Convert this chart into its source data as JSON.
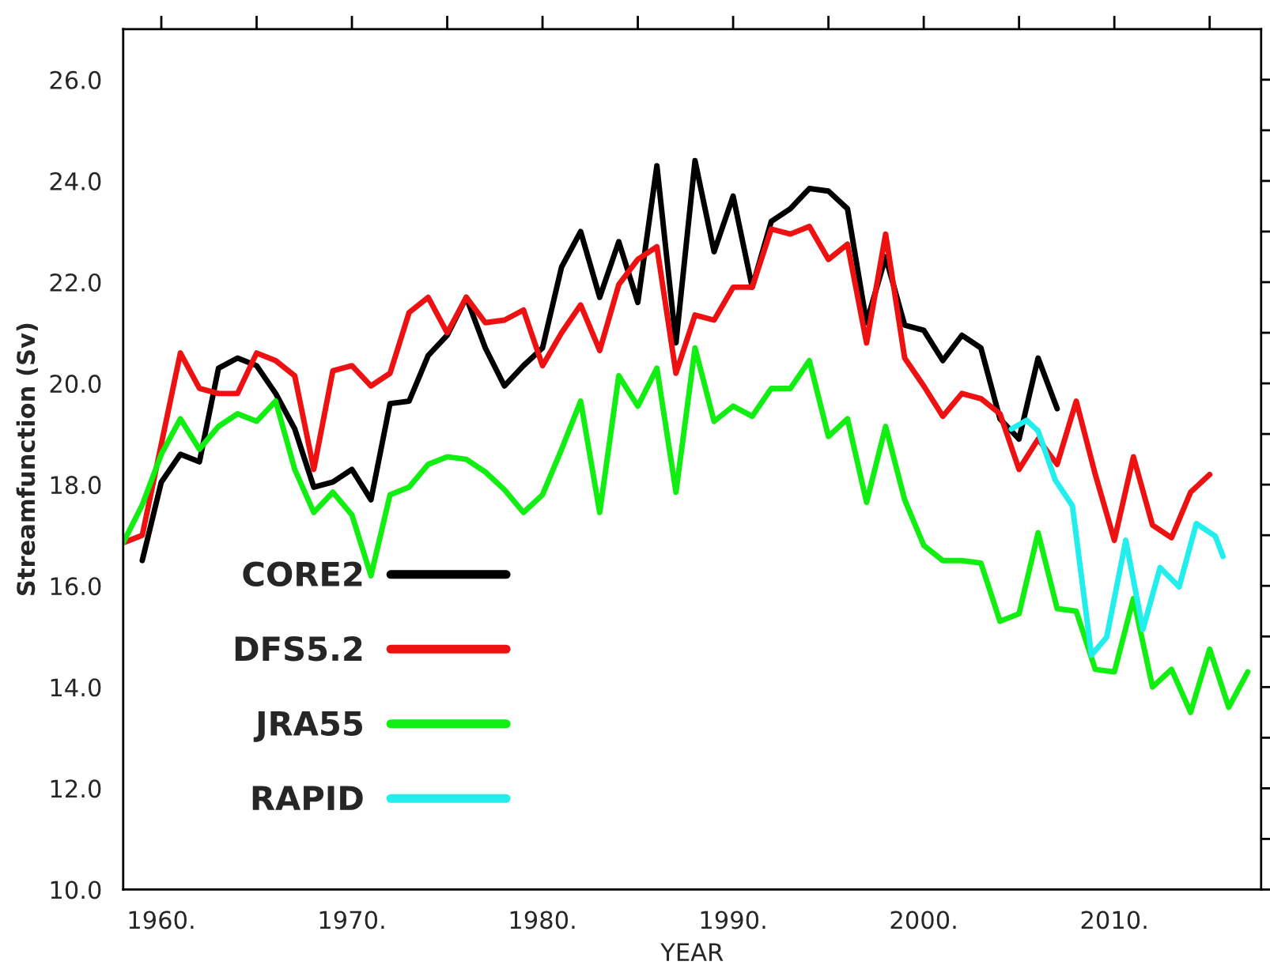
{
  "chart_data": {
    "type": "line",
    "xlabel": "YEAR",
    "ylabel": "Streamfunction (Sv)",
    "xlim": [
      1958,
      2017.7
    ],
    "ylim": [
      10,
      27
    ],
    "xticks": [
      {
        "value": 1960,
        "label": "1960."
      },
      {
        "value": 1965,
        "label": null
      },
      {
        "value": 1970,
        "label": "1970."
      },
      {
        "value": 1975,
        "label": null
      },
      {
        "value": 1980,
        "label": "1980."
      },
      {
        "value": 1985,
        "label": null
      },
      {
        "value": 1990,
        "label": "1990."
      },
      {
        "value": 1995,
        "label": null
      },
      {
        "value": 2000,
        "label": "2000."
      },
      {
        "value": 2005,
        "label": null
      },
      {
        "value": 2010,
        "label": "2010."
      },
      {
        "value": 2015,
        "label": null
      }
    ],
    "yticks": [
      {
        "value": 10,
        "label": "10.0"
      },
      {
        "value": 11,
        "label": null
      },
      {
        "value": 12,
        "label": "12.0"
      },
      {
        "value": 13,
        "label": null
      },
      {
        "value": 14,
        "label": "14.0"
      },
      {
        "value": 15,
        "label": null
      },
      {
        "value": 16,
        "label": "16.0"
      },
      {
        "value": 17,
        "label": null
      },
      {
        "value": 18,
        "label": "18.0"
      },
      {
        "value": 19,
        "label": null
      },
      {
        "value": 20,
        "label": "20.0"
      },
      {
        "value": 21,
        "label": null
      },
      {
        "value": 22,
        "label": "22.0"
      },
      {
        "value": 23,
        "label": null
      },
      {
        "value": 24,
        "label": "24.0"
      },
      {
        "value": 25,
        "label": null
      },
      {
        "value": 26,
        "label": "26.0"
      }
    ],
    "grid": false,
    "legend": "bottom left",
    "marker": "none",
    "line_style": "solid",
    "series": [
      {
        "name": "CORE2",
        "color": "#000000",
        "x": [
          1959,
          1960,
          1961,
          1962,
          1963,
          1964,
          1965,
          1966,
          1967,
          1968,
          1969,
          1970,
          1971,
          1972,
          1973,
          1974,
          1975,
          1976,
          1977,
          1978,
          1979,
          1980,
          1981,
          1982,
          1983,
          1984,
          1985,
          1986,
          1987,
          1988,
          1989,
          1990,
          1991,
          1992,
          1993,
          1994,
          1995,
          1996,
          1997,
          1998,
          1999,
          2000,
          2001,
          2002,
          2003,
          2004,
          2005,
          2006,
          2007
        ],
        "values": [
          16.5,
          18.05,
          18.6,
          18.45,
          20.3,
          20.5,
          20.35,
          19.8,
          19.1,
          17.95,
          18.05,
          18.3,
          17.7,
          19.6,
          19.65,
          20.55,
          20.95,
          21.7,
          20.7,
          19.95,
          20.35,
          20.7,
          22.3,
          23.0,
          21.7,
          22.8,
          21.6,
          24.3,
          20.8,
          24.4,
          22.6,
          23.7,
          21.9,
          23.2,
          23.45,
          23.85,
          23.8,
          23.45,
          21.2,
          22.5,
          21.15,
          21.05,
          20.45,
          20.95,
          20.7,
          19.3,
          18.9,
          20.5,
          19.5
        ]
      },
      {
        "name": "DFS5.2",
        "color": "#ee1111",
        "x": [
          1958,
          1959,
          1960,
          1961,
          1962,
          1963,
          1964,
          1965,
          1966,
          1967,
          1968,
          1969,
          1970,
          1971,
          1972,
          1973,
          1974,
          1975,
          1976,
          1977,
          1978,
          1979,
          1980,
          1981,
          1982,
          1983,
          1984,
          1985,
          1986,
          1987,
          1988,
          1989,
          1990,
          1991,
          1992,
          1993,
          1994,
          1995,
          1996,
          1997,
          1998,
          1999,
          2000,
          2001,
          2002,
          2003,
          2004,
          2005,
          2006,
          2007,
          2008,
          2009,
          2010,
          2011,
          2012,
          2013,
          2014,
          2015
        ],
        "values": [
          16.85,
          17.0,
          18.8,
          20.6,
          19.9,
          19.8,
          19.8,
          20.6,
          20.45,
          20.15,
          18.3,
          20.25,
          20.35,
          19.95,
          20.2,
          21.4,
          21.7,
          21.0,
          21.7,
          21.2,
          21.25,
          21.45,
          20.35,
          21.0,
          21.55,
          20.65,
          21.95,
          22.45,
          22.7,
          20.2,
          21.35,
          21.25,
          21.9,
          21.9,
          23.05,
          22.95,
          23.1,
          22.45,
          22.75,
          20.8,
          22.95,
          20.5,
          19.95,
          19.35,
          19.8,
          19.7,
          19.4,
          18.3,
          18.9,
          18.4,
          19.65,
          18.2,
          16.9,
          18.55,
          17.2,
          16.95,
          17.85,
          18.2
        ]
      },
      {
        "name": "JRA55",
        "color": "#11ee11",
        "x": [
          1958,
          1959,
          1960,
          1961,
          1962,
          1963,
          1964,
          1965,
          1966,
          1967,
          1968,
          1969,
          1970,
          1971,
          1972,
          1973,
          1974,
          1975,
          1976,
          1977,
          1978,
          1979,
          1980,
          1981,
          1982,
          1983,
          1984,
          1985,
          1986,
          1987,
          1988,
          1989,
          1990,
          1991,
          1992,
          1993,
          1994,
          1995,
          1996,
          1997,
          1998,
          1999,
          2000,
          2001,
          2002,
          2003,
          2004,
          2005,
          2006,
          2007,
          2008,
          2009,
          2010,
          2011,
          2012,
          2013,
          2014,
          2015,
          2016,
          2017
        ],
        "values": [
          16.85,
          17.6,
          18.6,
          19.3,
          18.7,
          19.15,
          19.4,
          19.25,
          19.65,
          18.3,
          17.45,
          17.85,
          17.4,
          16.2,
          17.8,
          17.95,
          18.4,
          18.55,
          18.5,
          18.25,
          17.9,
          17.45,
          17.8,
          18.7,
          19.65,
          17.45,
          20.15,
          19.55,
          20.3,
          17.85,
          20.7,
          19.25,
          19.55,
          19.35,
          19.9,
          19.9,
          20.45,
          18.95,
          19.3,
          17.65,
          19.15,
          17.7,
          16.8,
          16.5,
          16.5,
          16.45,
          15.3,
          15.45,
          17.05,
          15.55,
          15.5,
          14.35,
          14.3,
          15.75,
          14.0,
          14.35,
          13.5,
          14.75,
          13.6,
          14.3
        ]
      },
      {
        "name": "RAPID",
        "color": "#22eeee",
        "x": [
          2004.6,
          2005.4,
          2006.0,
          2006.9,
          2007.8,
          2008.8,
          2009.6,
          2010.6,
          2011.5,
          2012.4,
          2013.4,
          2014.3,
          2015.3,
          2015.7
        ],
        "values": [
          19.1,
          19.27,
          19.06,
          18.09,
          17.58,
          14.63,
          14.99,
          16.9,
          15.14,
          16.36,
          15.98,
          17.23,
          16.98,
          16.58
        ]
      }
    ]
  }
}
